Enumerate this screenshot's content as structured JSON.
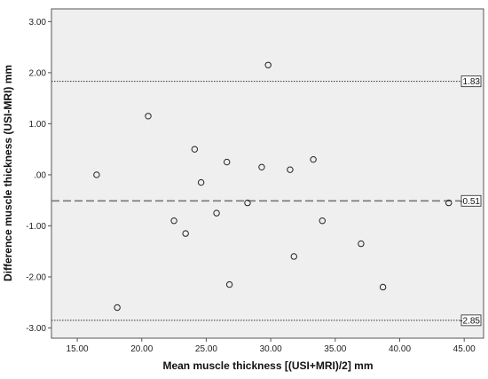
{
  "chart_data": {
    "type": "scatter",
    "title": "",
    "xlabel": "Mean muscle thickness [(USI+MRI)/2] mm",
    "ylabel": "Difference muscle thickness (USI-MRI) mm",
    "xlim": [
      13.0,
      46.5
    ],
    "ylim": [
      -3.2,
      3.25
    ],
    "x_ticks": [
      15,
      20,
      25,
      30,
      35,
      40,
      45
    ],
    "x_tick_labels": [
      "15.00",
      "20.00",
      "25.00",
      "30.00",
      "35.00",
      "40.00",
      "45.00"
    ],
    "y_ticks": [
      3,
      2,
      1,
      0,
      -1,
      -2,
      -3
    ],
    "y_tick_labels": [
      "3.00",
      "2.00",
      "1.00",
      ".00",
      "-1.00",
      "-2.00",
      "-3.00"
    ],
    "grid": false,
    "points": [
      {
        "x": 16.5,
        "y": 0.0
      },
      {
        "x": 18.1,
        "y": -2.6
      },
      {
        "x": 20.5,
        "y": 1.15
      },
      {
        "x": 22.5,
        "y": -0.9
      },
      {
        "x": 23.4,
        "y": -1.15
      },
      {
        "x": 24.1,
        "y": 0.5
      },
      {
        "x": 24.6,
        "y": -0.15
      },
      {
        "x": 25.8,
        "y": -0.75
      },
      {
        "x": 26.6,
        "y": 0.25
      },
      {
        "x": 26.8,
        "y": -2.15
      },
      {
        "x": 28.2,
        "y": -0.55
      },
      {
        "x": 29.3,
        "y": 0.15
      },
      {
        "x": 29.8,
        "y": 2.15
      },
      {
        "x": 31.5,
        "y": 0.1
      },
      {
        "x": 31.8,
        "y": -1.6
      },
      {
        "x": 33.3,
        "y": 0.3
      },
      {
        "x": 34.0,
        "y": -0.9
      },
      {
        "x": 37.0,
        "y": -1.35
      },
      {
        "x": 38.7,
        "y": -2.2
      },
      {
        "x": 43.8,
        "y": -0.55
      }
    ],
    "reference_lines": [
      {
        "y": 1.83,
        "label": "1.83",
        "style": "dotted"
      },
      {
        "y": -0.51,
        "label": "-0.51",
        "style": "dashed"
      },
      {
        "y": -2.85,
        "label": "-2.85",
        "style": "dotted"
      }
    ],
    "colors": {
      "plot_background": "#efefef",
      "marker_stroke": "#222222",
      "reference_line": "#333333",
      "mean_line": "#777777"
    }
  }
}
